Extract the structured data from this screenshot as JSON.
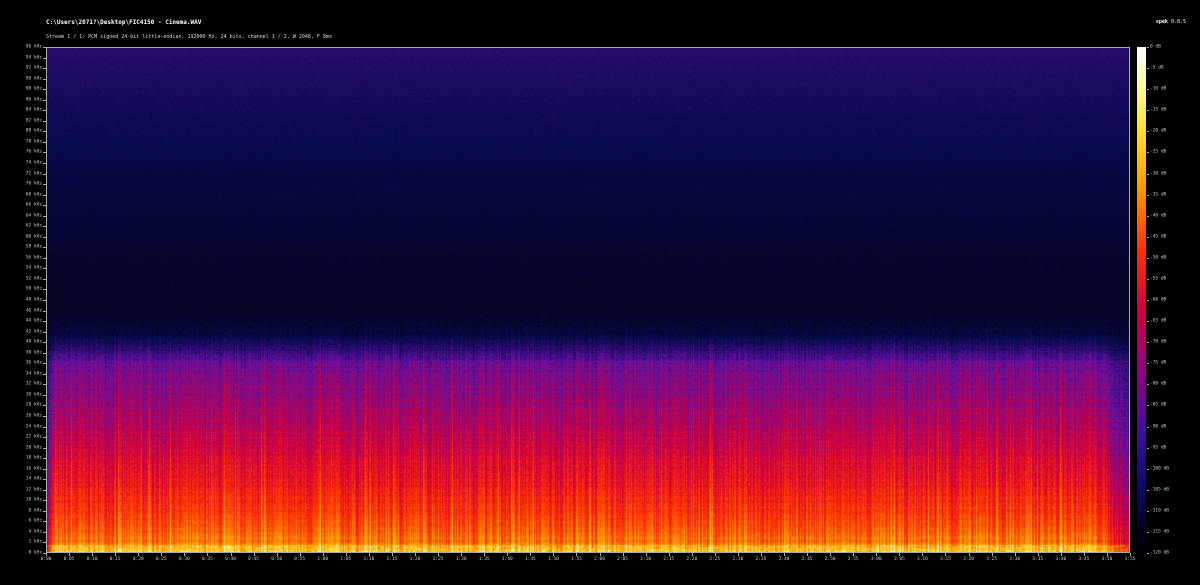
{
  "header": {
    "title": "C:\\Users\\2071?\\Desktop\\FIC4150 - Cinema.WAV",
    "subtitle": "Stream 1 / 1: PCM signed 24-bit little-endian, 192000 Hz, 24 bits, channel 1 / 2, W 2048, F 8ms",
    "app_name": "spek",
    "app_version": "0.8.5"
  },
  "chart_data": {
    "type": "heatmap",
    "title": "",
    "xlabel": "",
    "ylabel": "",
    "x_range_seconds": [
      0,
      235
    ],
    "y_range_khz": [
      0,
      96
    ],
    "colorbar_range_db": [
      0,
      -120
    ],
    "content_cutoff_khz": 42,
    "palette": [
      "#000000",
      "#0a0a50",
      "#6010a0",
      "#d00040",
      "#ff3000",
      "#ff9a00",
      "#ffd820",
      "#ffffff"
    ],
    "y_ticks": [
      "0 kHz",
      "2 kHz",
      "4 kHz",
      "6 kHz",
      "8 kHz",
      "10 kHz",
      "12 kHz",
      "14 kHz",
      "16 kHz",
      "18 kHz",
      "20 kHz",
      "22 kHz",
      "24 kHz",
      "26 kHz",
      "28 kHz",
      "30 kHz",
      "32 kHz",
      "34 kHz",
      "36 kHz",
      "38 kHz",
      "40 kHz",
      "42 kHz",
      "44 kHz",
      "46 kHz",
      "48 kHz",
      "50 kHz",
      "52 kHz",
      "54 kHz",
      "56 kHz",
      "58 kHz",
      "60 kHz",
      "62 kHz",
      "64 kHz",
      "66 kHz",
      "68 kHz",
      "70 kHz",
      "72 kHz",
      "74 kHz",
      "76 kHz",
      "78 kHz",
      "80 kHz",
      "82 kHz",
      "84 kHz",
      "86 kHz",
      "88 kHz",
      "90 kHz",
      "92 kHz",
      "94 kHz",
      "96 kHz"
    ],
    "x_ticks": [
      "0:00",
      "0:05",
      "0:10",
      "0:15",
      "0:20",
      "0:25",
      "0:30",
      "0:35",
      "0:40",
      "0:45",
      "0:50",
      "0:55",
      "1:00",
      "1:05",
      "1:10",
      "1:15",
      "1:20",
      "1:25",
      "1:30",
      "1:35",
      "1:40",
      "1:45",
      "1:50",
      "1:55",
      "2:00",
      "2:05",
      "2:10",
      "2:15",
      "2:20",
      "2:25",
      "2:30",
      "2:35",
      "2:40",
      "2:45",
      "2:50",
      "2:55",
      "3:00",
      "3:05",
      "3:10",
      "3:15",
      "3:20",
      "3:25",
      "3:30",
      "3:35",
      "3:40",
      "3:45",
      "3:50",
      "3:55"
    ],
    "colorbar_ticks": [
      "0 dB",
      "-5 dB",
      "-10 dB",
      "-15 dB",
      "-20 dB",
      "-25 dB",
      "-30 dB",
      "-35 dB",
      "-40 dB",
      "-45 dB",
      "-50 dB",
      "-55 dB",
      "-60 dB",
      "-65 dB",
      "-70 dB",
      "-75 dB",
      "-80 dB",
      "-85 dB",
      "-90 dB",
      "-95 dB",
      "-100 dB",
      "-105 dB",
      "-110 dB",
      "-115 dB",
      "-120 dB"
    ]
  }
}
